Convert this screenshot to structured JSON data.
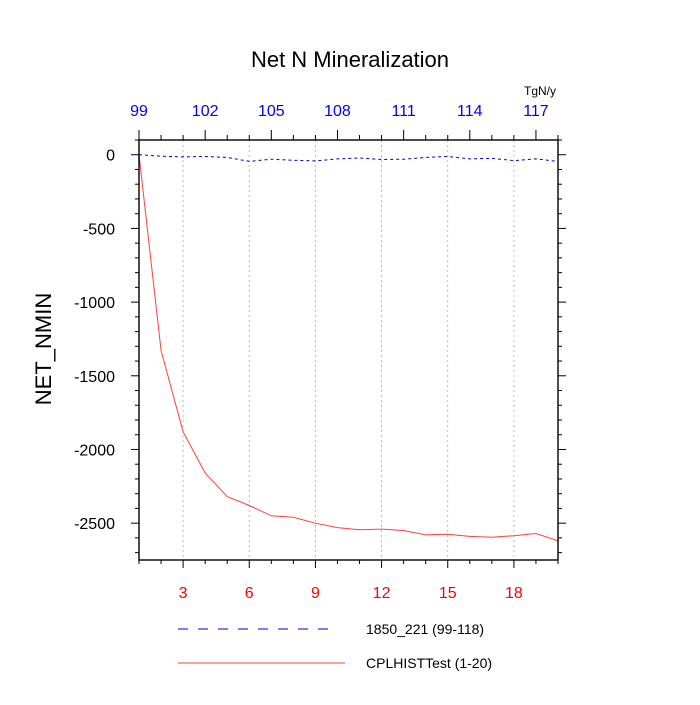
{
  "colors": {
    "top_axis": "#0000ff",
    "bottom_axis": "#ff0000",
    "series_1850": "#0000cc",
    "series_cplhist": "#ff4040",
    "frame": "#000000",
    "grid": "#aaaaaa"
  },
  "chart_data": {
    "type": "line",
    "title": "Net N Mineralization",
    "ylabel": "NET_NMIN",
    "units": "TgN/y",
    "xlabel": "",
    "xlim": [
      1,
      20
    ],
    "ylim": [
      -2750,
      100
    ],
    "yticks": [
      0,
      -500,
      -1000,
      -1500,
      -2000,
      -2500
    ],
    "ytick_labels": [
      "0",
      "-500",
      "-1000",
      "-1500",
      "-2000",
      "-2500"
    ],
    "xticks_bottom": [
      3,
      6,
      9,
      12,
      15,
      18
    ],
    "xtick_labels_bottom": [
      "3",
      "6",
      "9",
      "12",
      "15",
      "18"
    ],
    "xticks_top": [
      99,
      102,
      105,
      108,
      111,
      114,
      117
    ],
    "xtick_labels_top": [
      "99",
      "102",
      "105",
      "108",
      "111",
      "114",
      "117"
    ],
    "top_axis_offset": 98,
    "gridlines_x": true,
    "legend_position": "bottom-center",
    "series": [
      {
        "name": "1850_221 (99-118)",
        "style": "dashed",
        "axis": "top",
        "x": [
          99,
          100,
          101,
          102,
          103,
          104,
          105,
          106,
          107,
          108,
          109,
          110,
          111,
          112,
          113,
          114,
          115,
          116,
          117,
          118
        ],
        "values": [
          0,
          -10,
          -15,
          -12,
          -18,
          -45,
          -30,
          -38,
          -42,
          -28,
          -22,
          -32,
          -30,
          -18,
          -12,
          -28,
          -24,
          -40,
          -28,
          -45
        ]
      },
      {
        "name": "CPLHISTTest (1-20)",
        "style": "solid",
        "axis": "bottom",
        "x": [
          1,
          2,
          3,
          4,
          5,
          6,
          7,
          8,
          9,
          10,
          11,
          12,
          13,
          14,
          15,
          16,
          17,
          18,
          19,
          20
        ],
        "values": [
          0,
          -1330,
          -1880,
          -2160,
          -2320,
          -2380,
          -2450,
          -2460,
          -2500,
          -2530,
          -2545,
          -2540,
          -2550,
          -2580,
          -2575,
          -2590,
          -2595,
          -2585,
          -2570,
          -2620
        ]
      }
    ]
  }
}
